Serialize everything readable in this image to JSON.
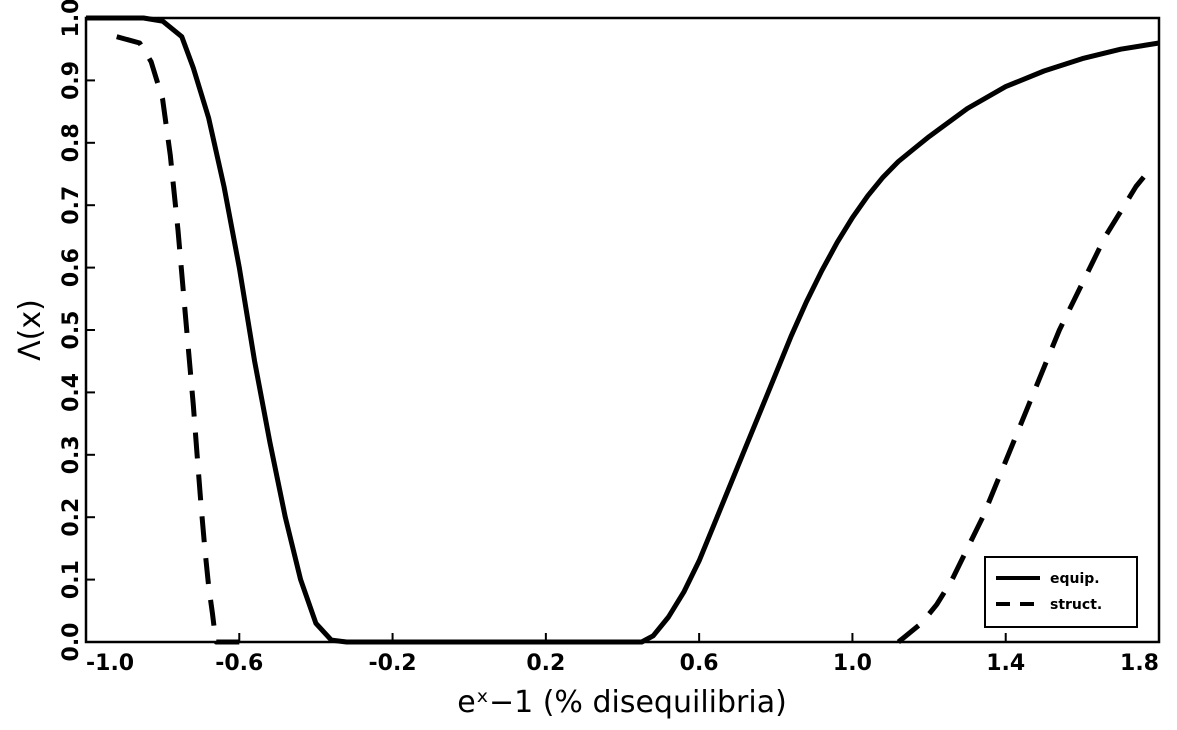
{
  "chart_data": {
    "type": "line",
    "xlabel": "eˣ−1 (% disequilibria)",
    "ylabel": "Λ(x)",
    "xlim": [
      -1.0,
      1.8
    ],
    "ylim": [
      0.0,
      1.0
    ],
    "x_ticks": [
      "-1.0",
      "-0.6",
      "-0.2",
      "0.2",
      "0.6",
      "1.0",
      "1.4",
      "1.8"
    ],
    "y_ticks": [
      "0.0",
      "0.1",
      "0.2",
      "0.3",
      "0.4",
      "0.5",
      "0.6",
      "0.7",
      "0.8",
      "0.9",
      "1.0"
    ],
    "grid": false,
    "legend_position": "bottom-right",
    "series": [
      {
        "name": "equip.",
        "style": "solid",
        "x": [
          -1.0,
          -0.85,
          -0.8,
          -0.75,
          -0.72,
          -0.68,
          -0.64,
          -0.6,
          -0.56,
          -0.52,
          -0.48,
          -0.44,
          -0.4,
          -0.36,
          -0.32,
          -0.2,
          0.2,
          0.45,
          0.48,
          0.52,
          0.56,
          0.6,
          0.64,
          0.68,
          0.72,
          0.76,
          0.8,
          0.84,
          0.88,
          0.92,
          0.96,
          1.0,
          1.04,
          1.08,
          1.12,
          1.16,
          1.2,
          1.3,
          1.4,
          1.5,
          1.6,
          1.7,
          1.8
        ],
        "y": [
          1.0,
          1.0,
          0.995,
          0.97,
          0.92,
          0.84,
          0.73,
          0.6,
          0.45,
          0.32,
          0.2,
          0.1,
          0.03,
          0.003,
          0.0,
          0.0,
          0.0,
          0.0,
          0.01,
          0.04,
          0.08,
          0.13,
          0.19,
          0.25,
          0.31,
          0.37,
          0.43,
          0.49,
          0.545,
          0.595,
          0.64,
          0.68,
          0.715,
          0.745,
          0.77,
          0.79,
          0.81,
          0.855,
          0.89,
          0.915,
          0.935,
          0.95,
          0.96
        ]
      },
      {
        "name": "struct.",
        "style": "dashed",
        "x": [
          -0.92,
          -0.86,
          -0.83,
          -0.8,
          -0.78,
          -0.76,
          -0.74,
          -0.72,
          -0.71,
          -0.7,
          -0.69,
          -0.68,
          -0.67,
          -0.665,
          -0.66,
          -0.63,
          -0.6
        ],
        "y": [
          0.97,
          0.96,
          0.93,
          0.87,
          0.78,
          0.66,
          0.52,
          0.38,
          0.3,
          0.22,
          0.15,
          0.09,
          0.045,
          0.02,
          0.0,
          0.0,
          0.0
        ],
        "x2": [
          1.12,
          1.18,
          1.22,
          1.26,
          1.3,
          1.34,
          1.38,
          1.42,
          1.46,
          1.5,
          1.54,
          1.58,
          1.62,
          1.66,
          1.7,
          1.74,
          1.78
        ],
        "y2": [
          0.0,
          0.03,
          0.06,
          0.1,
          0.15,
          0.2,
          0.26,
          0.32,
          0.38,
          0.44,
          0.5,
          0.55,
          0.6,
          0.65,
          0.69,
          0.73,
          0.76
        ]
      }
    ]
  },
  "legend": {
    "items": [
      {
        "label": "equip."
      },
      {
        "label": "struct."
      }
    ]
  }
}
